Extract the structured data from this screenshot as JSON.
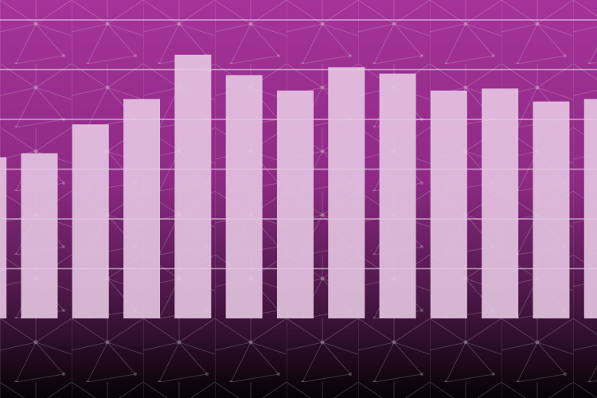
{
  "chart_data": {
    "type": "bar",
    "categories": [
      null,
      null,
      null,
      null,
      null,
      null,
      null,
      null,
      null,
      null,
      null,
      null,
      null
    ],
    "values": [
      3.24,
      3.32,
      3.9,
      4.41,
      5.3,
      4.89,
      4.58,
      5.05,
      4.92,
      4.58,
      4.62,
      4.36,
      4.41
    ],
    "color": "#e6c6e2",
    "ylim": [
      0,
      6.4
    ],
    "yticks": [
      1,
      2,
      3,
      4,
      5,
      6
    ],
    "grid": true
  }
}
